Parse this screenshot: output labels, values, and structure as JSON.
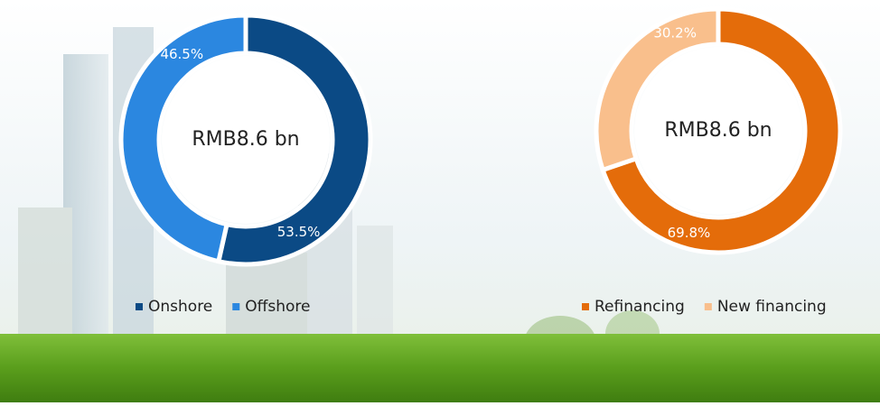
{
  "chart_data": [
    {
      "type": "pie",
      "center_label": "RMB8.6 bn",
      "categories": [
        "Onshore",
        "Offshore"
      ],
      "values": [
        53.5,
        46.5
      ],
      "value_labels": [
        "53.5%",
        "46.5%"
      ],
      "colors": [
        "#0b4a85",
        "#2b87e0"
      ]
    },
    {
      "type": "pie",
      "center_label": "RMB8.6 bn",
      "categories": [
        "Refinancing",
        "New financing"
      ],
      "values": [
        69.8,
        30.2
      ],
      "value_labels": [
        "69.8%",
        "30.2%"
      ],
      "colors": [
        "#e46c0a",
        "#f9bf8c"
      ]
    }
  ]
}
